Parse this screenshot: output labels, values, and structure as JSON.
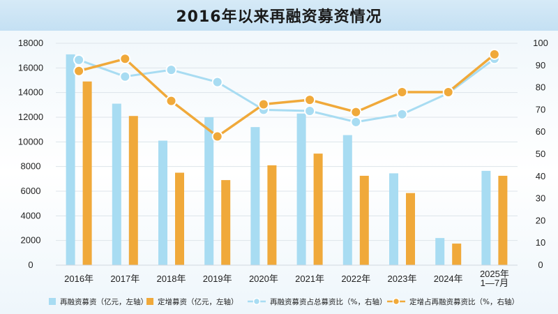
{
  "chart_data": {
    "type": "bar+line",
    "title": "2016年以来再融资募资情况",
    "categories": [
      "2016年",
      "2017年",
      "2018年",
      "2019年",
      "2020年",
      "2021年",
      "2022年",
      "2023年",
      "2024年",
      "2025年\n1—7月"
    ],
    "y_left": {
      "range": [
        0,
        18000
      ],
      "ticks": [
        "0",
        "2000",
        "4000",
        "6000",
        "8000",
        "10000",
        "12000",
        "14000",
        "16000",
        "18000"
      ]
    },
    "y_right": {
      "range": [
        0,
        100
      ],
      "ticks": [
        "0",
        "10",
        "20",
        "30",
        "40",
        "50",
        "60",
        "70",
        "80",
        "90",
        "100"
      ]
    },
    "series": [
      {
        "name": "再融资募资（亿元，左轴）",
        "type": "bar",
        "axis": "left",
        "color": "#a8dcf2",
        "values": [
          17100,
          13100,
          10100,
          12000,
          11200,
          12300,
          10550,
          7450,
          2200,
          7650
        ]
      },
      {
        "name": "定增募资（亿元，左轴）",
        "type": "bar",
        "axis": "left",
        "color": "#f0a93a",
        "values": [
          14900,
          12100,
          7500,
          6900,
          8100,
          9050,
          7250,
          5850,
          1750,
          7250
        ]
      },
      {
        "name": "再融资募资占总募资比（%，右轴）",
        "type": "line",
        "axis": "right",
        "color": "#a8dcf2",
        "values": [
          92.5,
          85,
          88,
          82.5,
          70,
          69.5,
          64.5,
          68,
          77.5,
          93
        ]
      },
      {
        "name": "定增占再融资募资比（%，右轴）",
        "type": "line",
        "axis": "right",
        "color": "#f0a93a",
        "values": [
          87.5,
          93,
          74,
          58,
          72.5,
          74.5,
          69,
          78,
          78,
          95
        ]
      }
    ]
  }
}
